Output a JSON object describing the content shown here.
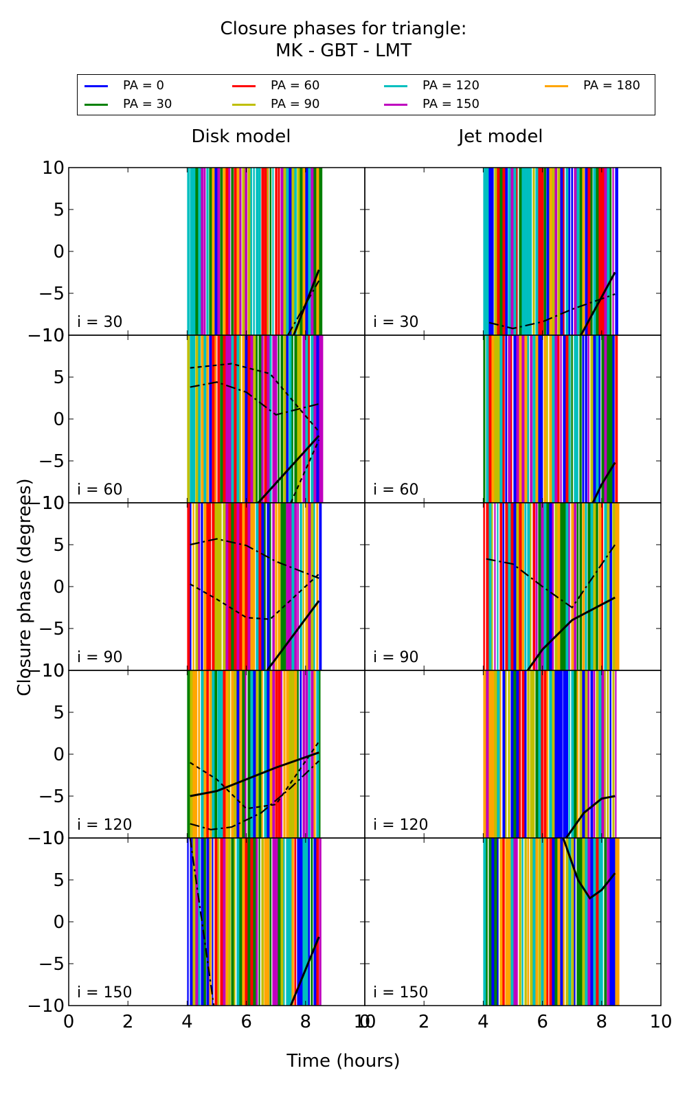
{
  "title": {
    "line1": "Closure phases for triangle:",
    "line2": "MK - GBT - LMT"
  },
  "legend": [
    {
      "label": "PA = 0",
      "color": "#0000ff"
    },
    {
      "label": "PA = 30",
      "color": "#008000"
    },
    {
      "label": "PA = 60",
      "color": "#ff0000"
    },
    {
      "label": "PA = 90",
      "color": "#bfbf00"
    },
    {
      "label": "PA = 120",
      "color": "#00bfbf"
    },
    {
      "label": "PA = 150",
      "color": "#bf00bf"
    },
    {
      "label": "PA = 180",
      "color": "#ffa500"
    }
  ],
  "columns": [
    "Disk model",
    "Jet model"
  ],
  "rows": [
    "i = 30",
    "i = 60",
    "i = 90",
    "i = 120",
    "i = 150"
  ],
  "axes": {
    "xlabel": "Time (hours)",
    "ylabel": "Closure phase (degrees)",
    "xlim": [
      0,
      10
    ],
    "ylim": [
      -10,
      10
    ],
    "xticks": [
      0,
      2,
      4,
      6,
      8,
      10
    ],
    "yticks": [
      -10,
      -5,
      0,
      5,
      10
    ],
    "xtick_labels": [
      "0",
      "2",
      "4",
      "6",
      "8",
      "10"
    ],
    "ytick_labels": [
      "−10",
      "−5",
      "0",
      "5",
      "10"
    ]
  },
  "chart_data": {
    "type": "line",
    "title": "Closure phases for triangle: MK - GBT - LMT",
    "xlabel": "Time (hours)",
    "ylabel": "Closure phase (degrees)",
    "xlim": [
      0,
      10
    ],
    "ylim": [
      -10,
      10
    ],
    "grid": false,
    "legend_position": "top",
    "series_names": [
      "PA = 0",
      "PA = 30",
      "PA = 60",
      "PA = 90",
      "PA = 120",
      "PA = 150",
      "PA = 180"
    ],
    "observation_window_hours": [
      4.0,
      8.5
    ],
    "panels": [
      {
        "column": "Disk model",
        "row": "i = 30",
        "curves": [
          [
            [
              7.6,
              -10
            ],
            [
              8.45,
              -2.2
            ]
          ],
          [
            [
              7.4,
              -10
            ],
            [
              8.45,
              -3.5
            ]
          ]
        ]
      },
      {
        "column": "Jet model",
        "row": "i = 30",
        "curves": [
          [
            [
              7.3,
              -10
            ],
            [
              8.45,
              -2.5
            ]
          ],
          [
            [
              4.2,
              -8.5
            ],
            [
              5.0,
              -9.2
            ],
            [
              6.0,
              -8.4
            ],
            [
              7.0,
              -6.9
            ],
            [
              8.45,
              -5.1
            ]
          ]
        ]
      },
      {
        "column": "Disk model",
        "row": "i = 60",
        "curves": [
          [
            [
              6.4,
              -10
            ],
            [
              8.45,
              -2.0
            ]
          ],
          [
            [
              4.1,
              3.8
            ],
            [
              5.0,
              4.4
            ],
            [
              6.0,
              3.2
            ],
            [
              7.0,
              0.5
            ],
            [
              8.45,
              1.8
            ]
          ],
          [
            [
              4.1,
              6.1
            ],
            [
              5.5,
              6.6
            ],
            [
              6.8,
              5.4
            ],
            [
              7.8,
              1.2
            ],
            [
              8.45,
              -1.5
            ]
          ],
          [
            [
              7.5,
              -10
            ],
            [
              8.45,
              -2.5
            ]
          ]
        ]
      },
      {
        "column": "Jet model",
        "row": "i = 60",
        "curves": [
          [
            [
              7.7,
              -10
            ],
            [
              8.0,
              -7.8
            ],
            [
              8.45,
              -5.2
            ]
          ]
        ]
      },
      {
        "column": "Disk model",
        "row": "i = 90",
        "curves": [
          [
            [
              6.7,
              -10
            ],
            [
              8.45,
              -1.7
            ]
          ],
          [
            [
              4.1,
              5.0
            ],
            [
              5.0,
              5.7
            ],
            [
              6.0,
              4.9
            ],
            [
              7.0,
              3.0
            ],
            [
              8.45,
              1.0
            ]
          ],
          [
            [
              4.1,
              0.3
            ],
            [
              5.0,
              -1.5
            ],
            [
              6.0,
              -3.7
            ],
            [
              6.8,
              -3.9
            ],
            [
              8.45,
              1.5
            ]
          ]
        ]
      },
      {
        "column": "Jet model",
        "row": "i = 90",
        "curves": [
          [
            [
              5.5,
              -10
            ],
            [
              6.0,
              -7.5
            ],
            [
              7.0,
              -4.0
            ],
            [
              8.45,
              -1.3
            ]
          ],
          [
            [
              4.1,
              3.3
            ],
            [
              5.0,
              2.7
            ],
            [
              6.0,
              0.0
            ],
            [
              7.0,
              -2.5
            ],
            [
              8.45,
              5.0
            ]
          ]
        ]
      },
      {
        "column": "Disk model",
        "row": "i = 120",
        "curves": [
          [
            [
              4.1,
              -5.0
            ],
            [
              5.0,
              -4.4
            ],
            [
              6.0,
              -3.0
            ],
            [
              7.0,
              -1.6
            ],
            [
              8.45,
              0.2
            ]
          ],
          [
            [
              4.1,
              -8.3
            ],
            [
              4.8,
              -9.0
            ],
            [
              5.5,
              -8.7
            ],
            [
              6.5,
              -7.0
            ],
            [
              7.5,
              -4.0
            ],
            [
              8.45,
              -0.8
            ]
          ],
          [
            [
              4.1,
              -1.0
            ],
            [
              5.0,
              -3.0
            ],
            [
              6.0,
              -6.5
            ],
            [
              7.0,
              -6.0
            ],
            [
              8.45,
              1.5
            ]
          ]
        ]
      },
      {
        "column": "Jet model",
        "row": "i = 120",
        "curves": [
          [
            [
              6.8,
              -10
            ],
            [
              7.4,
              -7.0
            ],
            [
              8.0,
              -5.3
            ],
            [
              8.45,
              -5.0
            ]
          ]
        ]
      },
      {
        "column": "Disk model",
        "row": "i = 150",
        "curves": [
          [
            [
              7.5,
              -10
            ],
            [
              8.45,
              -1.8
            ]
          ],
          [
            [
              4.1,
              10
            ],
            [
              4.5,
              0
            ],
            [
              4.9,
              -10
            ]
          ]
        ]
      },
      {
        "column": "Jet model",
        "row": "i = 150",
        "curves": [
          [
            [
              6.7,
              10
            ],
            [
              7.2,
              5.0
            ],
            [
              7.6,
              2.8
            ],
            [
              8.0,
              3.8
            ],
            [
              8.45,
              5.8
            ]
          ]
        ]
      }
    ]
  }
}
